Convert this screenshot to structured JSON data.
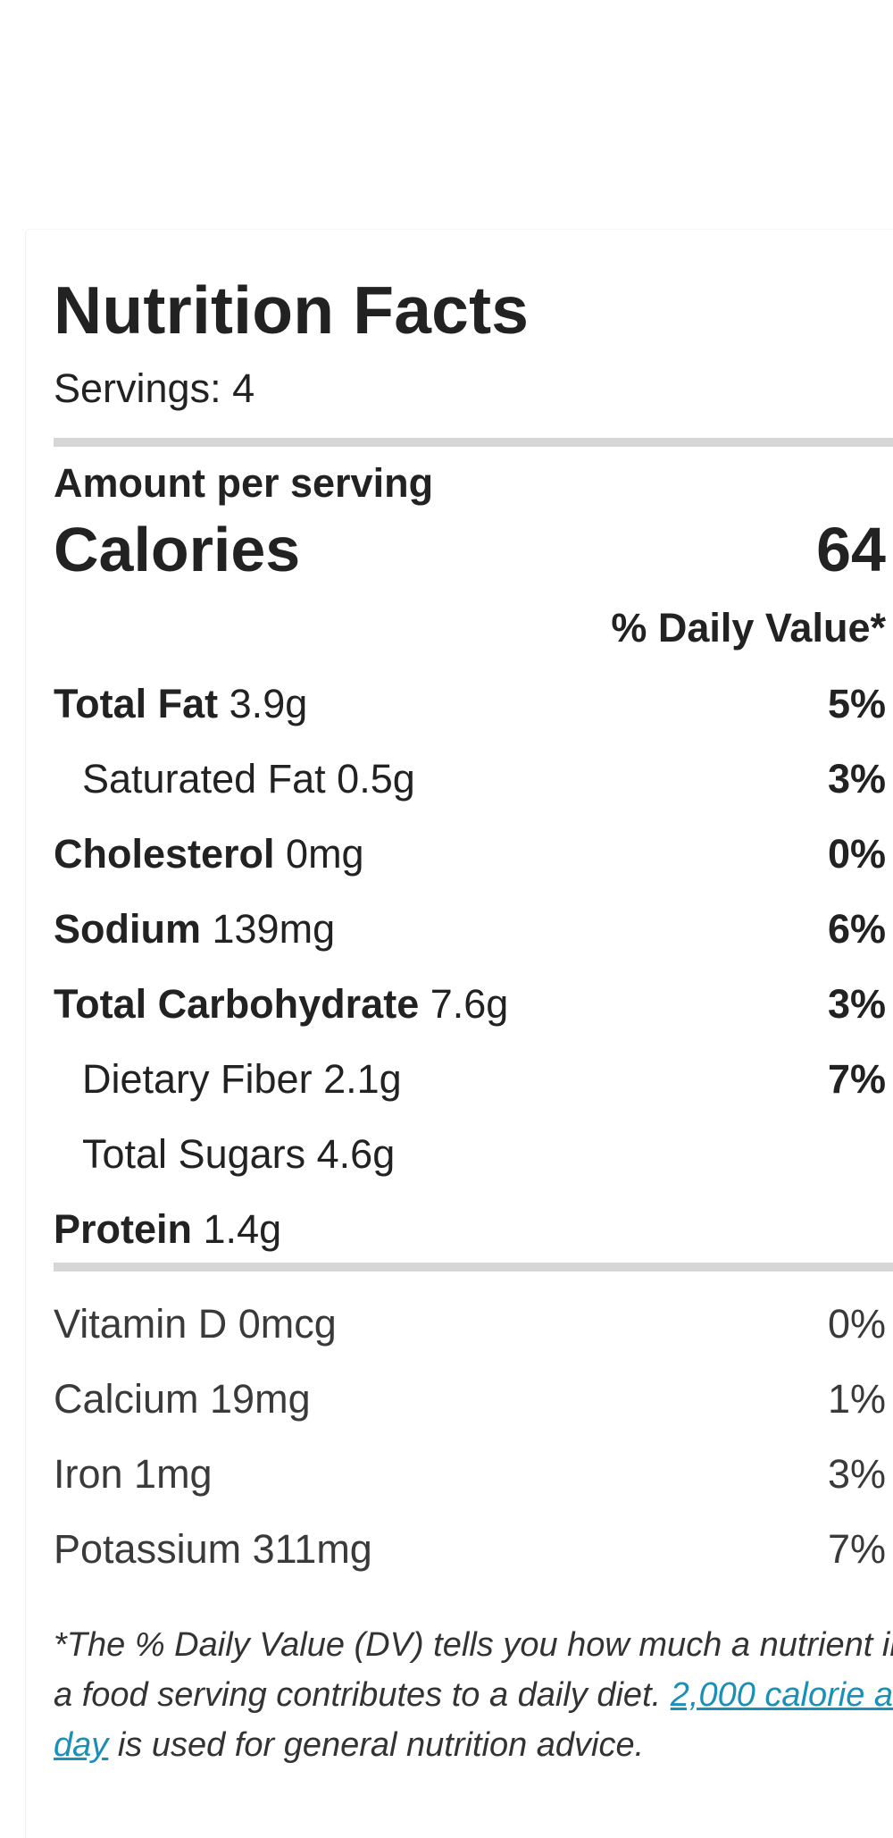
{
  "label": {
    "title": "Nutrition Facts",
    "servings": "Servings: 4",
    "amount_per_serving": "Amount per serving",
    "calories_label": "Calories",
    "calories_value": "64",
    "daily_value_header": "% Daily Value*"
  },
  "nutrients": [
    {
      "name": "Total Fat",
      "amount": " 3.9g",
      "dv": "5%"
    },
    {
      "name": "Saturated Fat 0.5g",
      "dv": "3%"
    },
    {
      "name": "Cholesterol",
      "amount": " 0mg",
      "dv": "0%"
    },
    {
      "name": "Sodium",
      "amount": " 139mg",
      "dv": "6%"
    },
    {
      "name": "Total Carbohydrate",
      "amount": " 7.6g",
      "dv": "3%"
    },
    {
      "name": "Dietary Fiber 2.1g",
      "dv": "7%"
    },
    {
      "name": "Total Sugars 4.6g"
    },
    {
      "name": "Protein",
      "amount": " 1.4g"
    }
  ],
  "vitamins": [
    {
      "name": "Vitamin D 0mcg",
      "dv": "0%"
    },
    {
      "name": "Calcium 19mg",
      "dv": "1%"
    },
    {
      "name": "Iron 1mg",
      "dv": "3%"
    },
    {
      "name": "Potassium 311mg",
      "dv": "7%"
    }
  ],
  "footnote": {
    "text_1": "*The % Daily Value (DV) tells you how much a nutrient in a food serving contributes to a daily diet. ",
    "link": "2,000 calorie a day",
    "text_2": " is used for general nutrition advice."
  },
  "colors": {
    "rule": "#d6d6d6",
    "link": "#1a8fb8",
    "text": "#222222"
  }
}
